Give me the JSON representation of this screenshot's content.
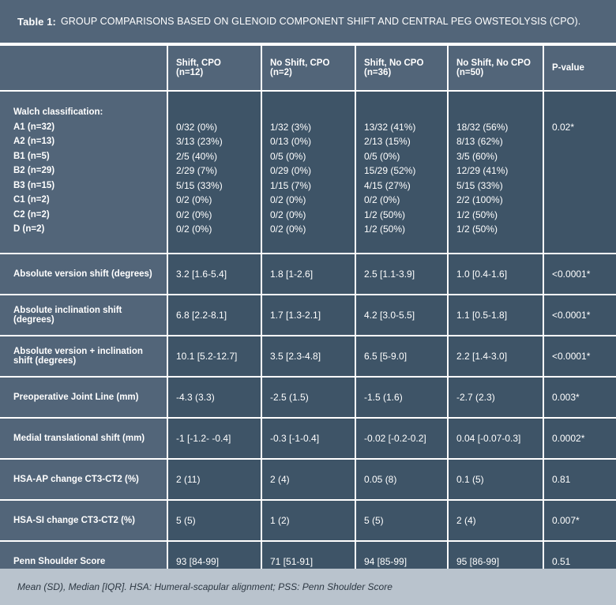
{
  "title": {
    "label": "Table 1:",
    "text": "GROUP COMPARISONS BASED ON GLENOID COMPONENT SHIFT AND CENTRAL PEG OWSTEOLYSIS (CPO)."
  },
  "columns": [
    {
      "line1": "Shift, CPO",
      "line2": "(n=12)"
    },
    {
      "line1": "No Shift, CPO",
      "line2": "(n=2)"
    },
    {
      "line1": "Shift, No CPO",
      "line2": "(n=36)"
    },
    {
      "line1": "No Shift, No CPO",
      "line2": "(n=50)"
    },
    {
      "line1": "P-value",
      "line2": ""
    }
  ],
  "walch": {
    "heading": "Walch classification:",
    "labels": [
      "A1 (n=32)",
      "A2 (n=13)",
      "B1 (n=5)",
      "B2 (n=29)",
      "B3 (n=15)",
      "C1 (n=2)",
      "C2 (n=2)",
      "D (n=2)"
    ],
    "col1": [
      "0/32 (0%)",
      "3/13 (23%)",
      "2/5 (40%)",
      "2/29 (7%)",
      "5/15 (33%)",
      "0/2 (0%)",
      "0/2 (0%)",
      "0/2 (0%)"
    ],
    "col2": [
      "1/32 (3%)",
      "0/13 (0%)",
      "0/5 (0%)",
      "0/29 (0%)",
      "1/15 (7%)",
      "0/2 (0%)",
      "0/2 (0%)",
      "0/2 (0%)"
    ],
    "col3": [
      "13/32 (41%)",
      "2/13 (15%)",
      "0/5 (0%)",
      "15/29 (52%)",
      "4/15 (27%)",
      "0/2 (0%)",
      "1/2 (50%)",
      "1/2 (50%)"
    ],
    "col4": [
      "18/32 (56%)",
      "8/13 (62%)",
      "3/5 (60%)",
      "12/29 (41%)",
      "5/15 (33%)",
      "2/2 (100%)",
      "1/2 (50%)",
      "1/2 (50%)"
    ],
    "pvalue": "0.02*"
  },
  "rows": [
    {
      "label": "Absolute version shift (degrees)",
      "values": [
        "3.2 [1.6-5.4]",
        "1.8 [1-2.6]",
        "2.5 [1.1-3.9]",
        "1.0 [0.4-1.6]",
        "<0.0001*"
      ]
    },
    {
      "label": "Absolute inclination shift (degrees)",
      "values": [
        "6.8 [2.2-8.1]",
        "1.7 [1.3-2.1]",
        "4.2 [3.0-5.5]",
        "1.1 [0.5-1.8]",
        "<0.0001*"
      ]
    },
    {
      "label": "Absolute version + inclination shift (degrees)",
      "values": [
        "10.1 [5.2-12.7]",
        "3.5 [2.3-4.8]",
        "6.5 [5-9.0]",
        "2.2 [1.4-3.0]",
        "<0.0001*"
      ]
    },
    {
      "label": "Preoperative Joint Line (mm)",
      "values": [
        "-4.3 (3.3)",
        "-2.5 (1.5)",
        "-1.5 (1.6)",
        "-2.7 (2.3)",
        "0.003*"
      ]
    },
    {
      "label": "Medial translational shift (mm)",
      "values": [
        "-1 [-1.2- -0.4]",
        "-0.3 [-1-0.4]",
        "-0.02 [-0.2-0.2]",
        "0.04 [-0.07-0.3]",
        "0.0002*"
      ]
    },
    {
      "label": "HSA-AP change CT3-CT2 (%)",
      "values": [
        "2 (11)",
        "2 (4)",
        "0.05 (8)",
        "0.1 (5)",
        "0.81"
      ]
    },
    {
      "label": "HSA-SI change CT3-CT2 (%)",
      "values": [
        "5 (5)",
        "1 (2)",
        "5 (5)",
        "2 (4)",
        "0.007*"
      ]
    },
    {
      "label": "Penn Shoulder Score",
      "values": [
        "93 [84-99]",
        "71 [51-91]",
        "94 [85-99]",
        "95 [86-99]",
        "0.51"
      ]
    }
  ],
  "footnote": "Mean (SD), Median [IQR]. HSA: Humeral-scapular alignment; PSS: Penn Shoulder Score"
}
